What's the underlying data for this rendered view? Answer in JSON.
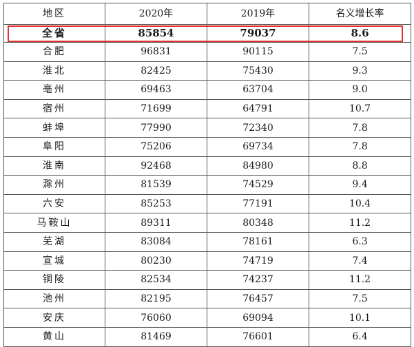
{
  "table": {
    "headers": {
      "region": "地区",
      "y2020": "2020年",
      "y2019": "2019年",
      "rate": "名义增长率"
    },
    "total": {
      "region": "全省",
      "y2020": "85854",
      "y2019": "79037",
      "rate": "8.6"
    },
    "rows": [
      {
        "region": "合肥",
        "y2020": "96831",
        "y2019": "90115",
        "rate": "7.5"
      },
      {
        "region": "淮北",
        "y2020": "82425",
        "y2019": "75430",
        "rate": "9.3"
      },
      {
        "region": "亳州",
        "y2020": "69463",
        "y2019": "63704",
        "rate": "9.0"
      },
      {
        "region": "宿州",
        "y2020": "71699",
        "y2019": "64791",
        "rate": "10.7"
      },
      {
        "region": "蚌埠",
        "y2020": "77990",
        "y2019": "72340",
        "rate": "7.8"
      },
      {
        "region": "阜阳",
        "y2020": "75206",
        "y2019": "69734",
        "rate": "7.8"
      },
      {
        "region": "淮南",
        "y2020": "92468",
        "y2019": "84980",
        "rate": "8.8"
      },
      {
        "region": "滁州",
        "y2020": "81539",
        "y2019": "74529",
        "rate": "9.4"
      },
      {
        "region": "六安",
        "y2020": "85253",
        "y2019": "77191",
        "rate": "10.4"
      },
      {
        "region": "马鞍山",
        "y2020": "89311",
        "y2019": "80348",
        "rate": "11.2"
      },
      {
        "region": "芜湖",
        "y2020": "83084",
        "y2019": "78161",
        "rate": "6.3"
      },
      {
        "region": "宣城",
        "y2020": "80230",
        "y2019": "74719",
        "rate": "7.4"
      },
      {
        "region": "铜陵",
        "y2020": "82534",
        "y2019": "74237",
        "rate": "11.2"
      },
      {
        "region": "池州",
        "y2020": "82195",
        "y2019": "76457",
        "rate": "7.5"
      },
      {
        "region": "安庆",
        "y2020": "76060",
        "y2019": "69094",
        "rate": "10.1"
      },
      {
        "region": "黄山",
        "y2020": "81469",
        "y2019": "76601",
        "rate": "6.4"
      }
    ]
  },
  "colors": {
    "highlight_border": "#e03030",
    "grid": "#555555",
    "text": "#1a1a1a"
  }
}
